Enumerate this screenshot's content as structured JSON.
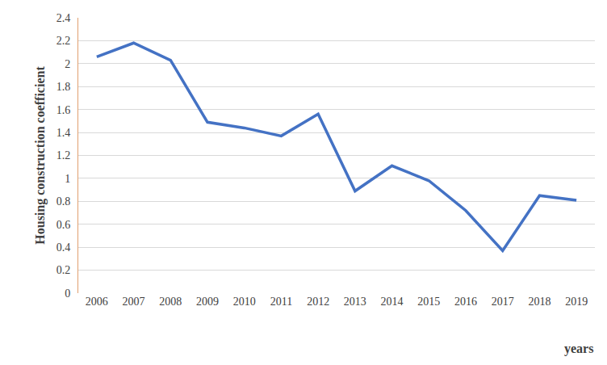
{
  "chart_data": {
    "type": "line",
    "y_label": "Housing construction coefficient",
    "x_label": "years",
    "categories": [
      "2006",
      "2007",
      "2008",
      "2009",
      "2010",
      "2011",
      "2012",
      "2013",
      "2014",
      "2015",
      "2016",
      "2017",
      "2018",
      "2019"
    ],
    "values": [
      2.06,
      2.18,
      2.03,
      1.49,
      1.44,
      1.37,
      1.56,
      0.89,
      1.11,
      0.98,
      0.72,
      0.37,
      0.85,
      0.81
    ],
    "color": "#4472c4",
    "ylim": [
      0,
      2.4
    ],
    "yticks": [
      0,
      0.2,
      0.4,
      0.6,
      0.8,
      1,
      1.2,
      1.4,
      1.6,
      1.8,
      2,
      2.2,
      2.4
    ],
    "grid": true
  }
}
